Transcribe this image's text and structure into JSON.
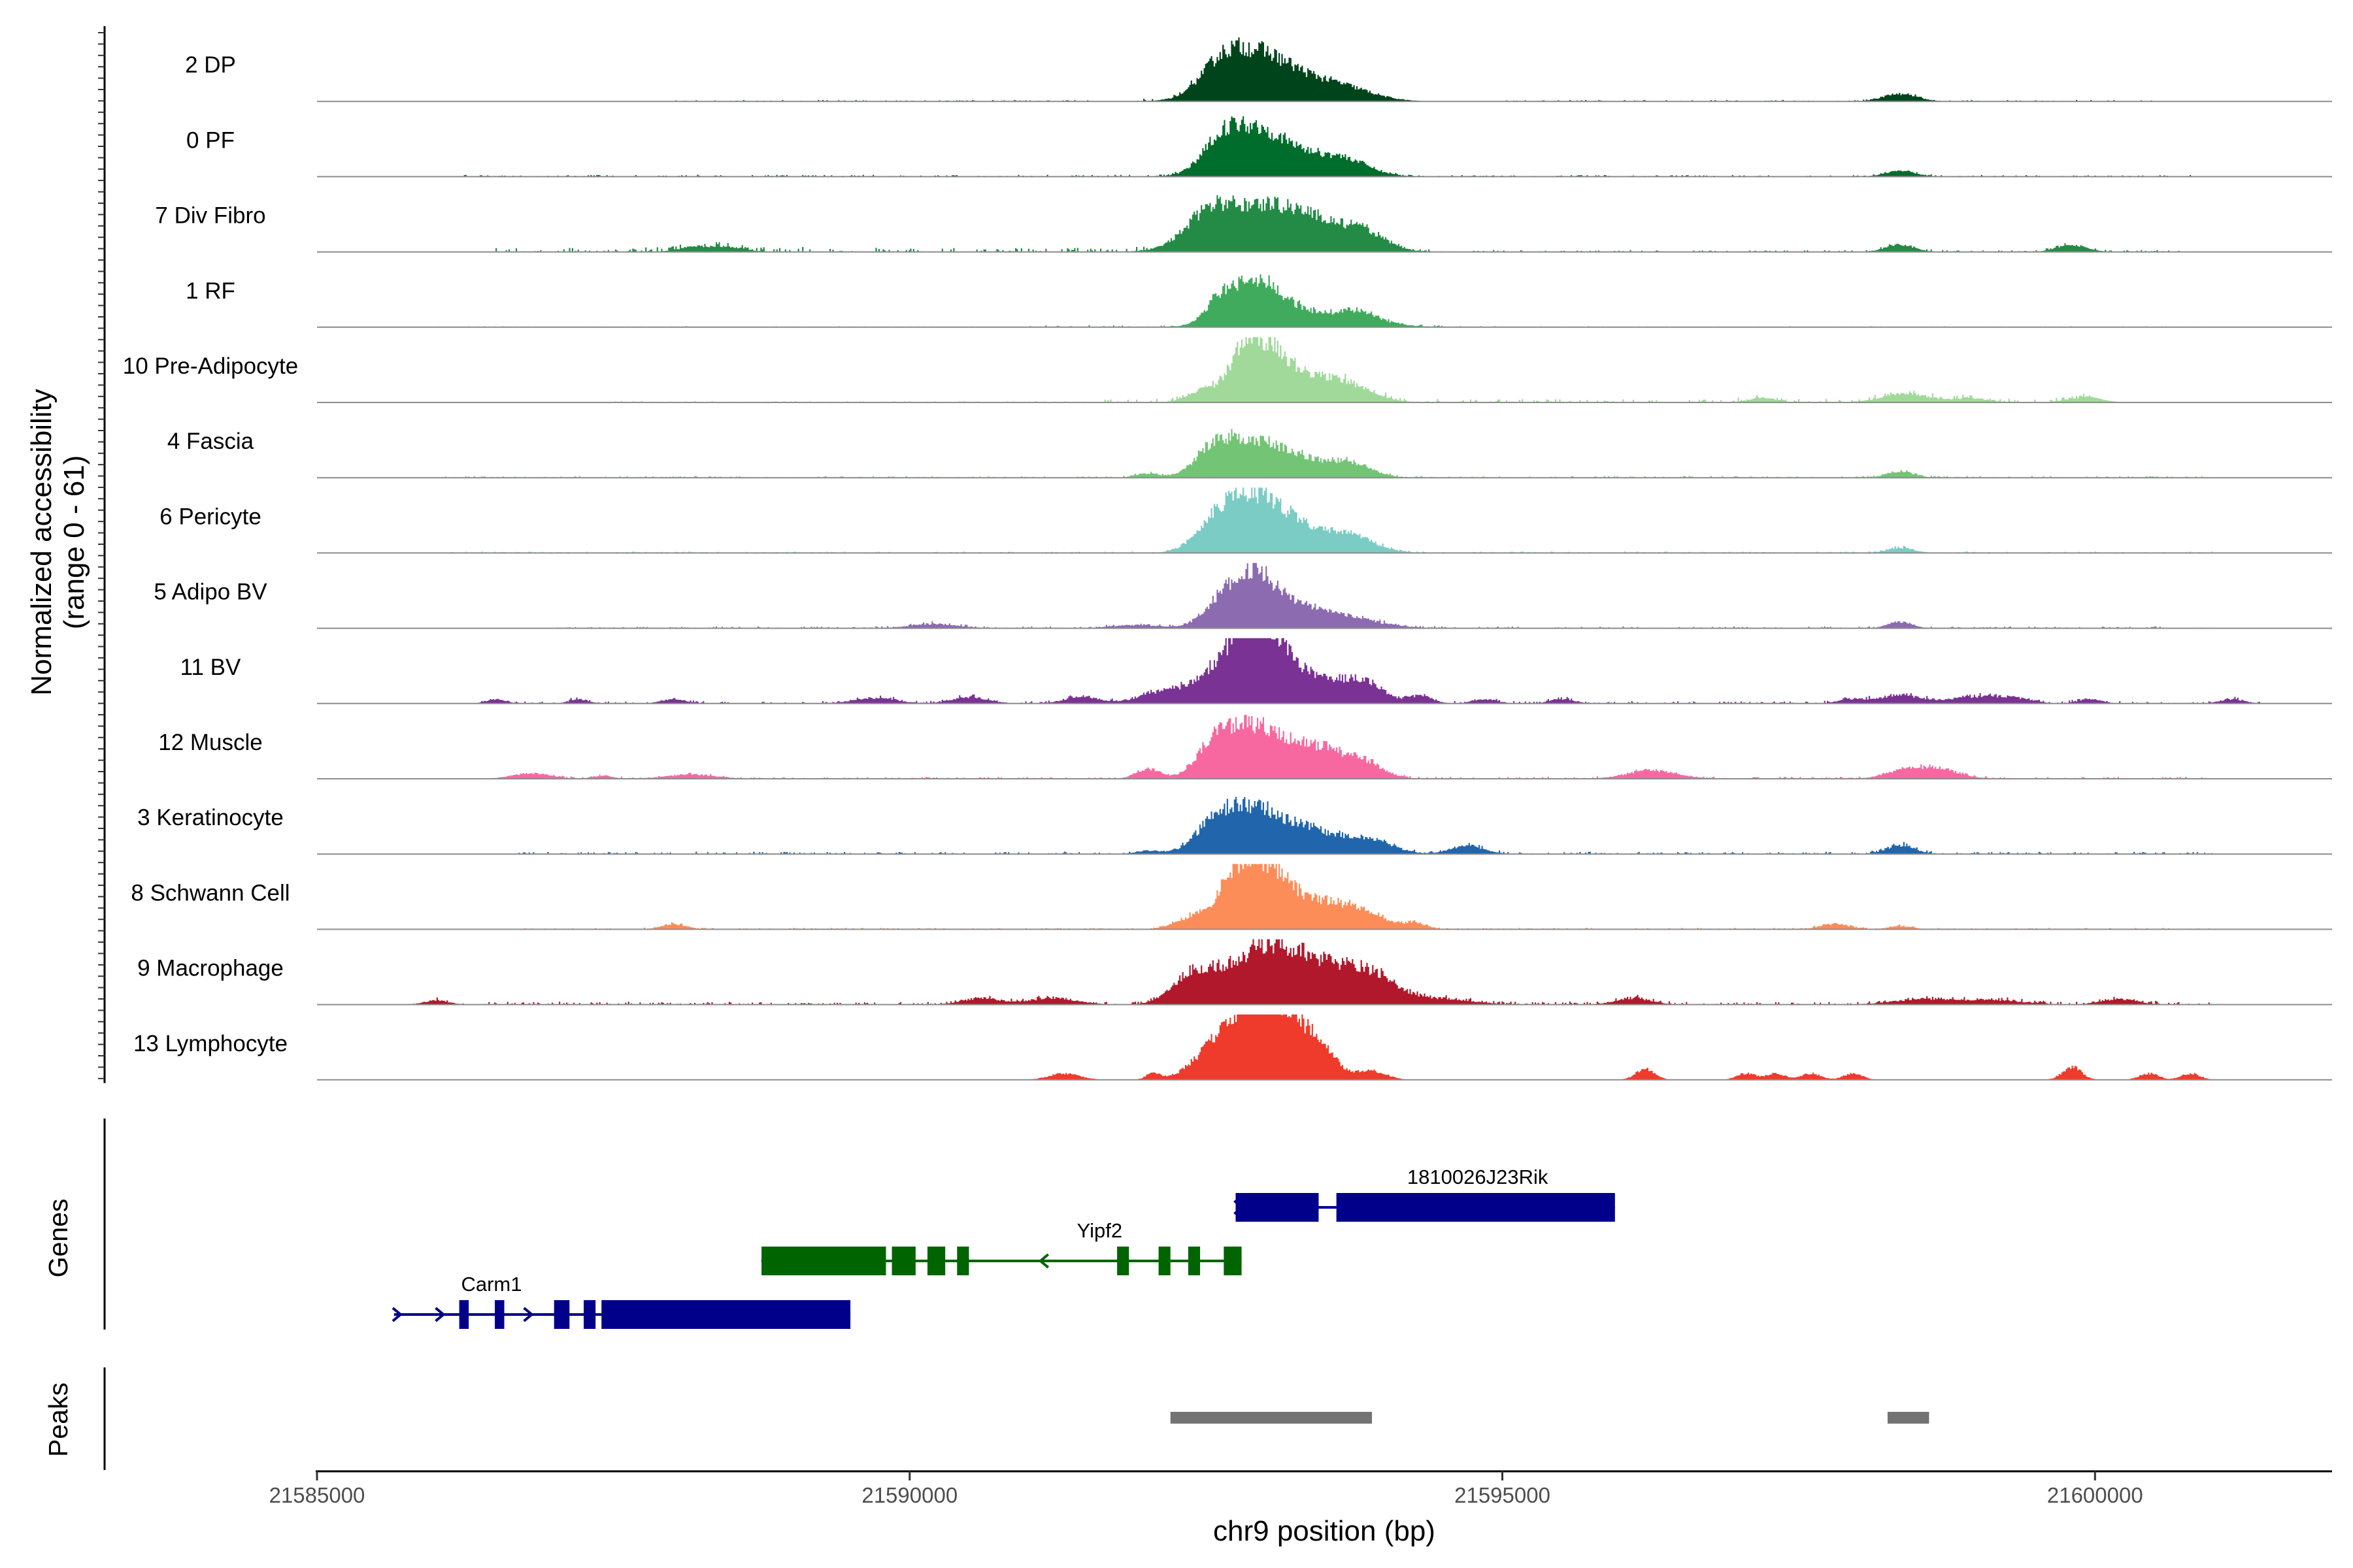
{
  "chart_data": {
    "type": "area",
    "title": "",
    "chromosome": "chr9",
    "xlabel": "chr9 position (bp)",
    "ylabel": "Normalized accessibility",
    "ylabel_range": "(range 0 - 61)",
    "xlim": [
      21585000,
      21602000
    ],
    "ylim": [
      0,
      61
    ],
    "x_ticks": [
      21585000,
      21590000,
      21595000,
      21600000
    ],
    "x_tick_labels": [
      "21585000",
      "21590000",
      "21595000",
      "21600000"
    ],
    "genes_label": "Genes",
    "peaks_label": "Peaks",
    "series": [
      {
        "name": "2 DP",
        "color": "#00441B",
        "peaks": [
          [
            21592850,
            42,
            280
          ],
          [
            21592600,
            14,
            150
          ],
          [
            21593300,
            16,
            300
          ],
          [
            21593700,
            8,
            250
          ],
          [
            21598350,
            7,
            140
          ]
        ],
        "noise": [
          [
            21591900,
            21592500,
            1.5
          ],
          [
            21588000,
            21591500,
            0.6
          ],
          [
            21595000,
            21600500,
            0.6
          ]
        ]
      },
      {
        "name": "0 PF",
        "color": "#006D2C",
        "peaks": [
          [
            21592850,
            40,
            250
          ],
          [
            21592600,
            16,
            140
          ],
          [
            21593300,
            18,
            300
          ],
          [
            21593700,
            10,
            200
          ],
          [
            21598350,
            6,
            120
          ]
        ],
        "noise": [
          [
            21586000,
            21592500,
            0.8
          ],
          [
            21594000,
            21601000,
            0.7
          ]
        ]
      },
      {
        "name": "7 Div Fibro",
        "color": "#238B45",
        "peaks": [
          [
            21592850,
            34,
            350
          ],
          [
            21592500,
            20,
            180
          ],
          [
            21593400,
            26,
            350
          ],
          [
            21593850,
            10,
            150
          ],
          [
            21598350,
            7,
            120
          ],
          [
            21599800,
            6,
            130
          ],
          [
            21588200,
            5,
            150
          ],
          [
            21588500,
            4,
            120
          ]
        ],
        "noise": [
          [
            21586500,
            21592000,
            2.0
          ],
          [
            21594000,
            21601000,
            0.8
          ]
        ]
      },
      {
        "name": "1 RF",
        "color": "#41AB5D",
        "peaks": [
          [
            21592900,
            38,
            220
          ],
          [
            21592600,
            14,
            120
          ],
          [
            21593400,
            12,
            400
          ],
          [
            21593800,
            8,
            150
          ]
        ],
        "noise": [
          [
            21591000,
            21594500,
            0.8
          ],
          [
            21586000,
            21601000,
            0.4
          ]
        ]
      },
      {
        "name": "10 Pre-Adipocyte",
        "color": "#A1D99B",
        "peaks": [
          [
            21592850,
            52,
            160
          ],
          [
            21593100,
            28,
            150
          ],
          [
            21593400,
            16,
            200
          ],
          [
            21593700,
            14,
            220
          ],
          [
            21592450,
            10,
            120
          ],
          [
            21598400,
            8,
            200
          ],
          [
            21599900,
            5,
            140
          ],
          [
            21597200,
            4,
            120
          ],
          [
            21598950,
            4,
            140
          ]
        ],
        "noise": [
          [
            21591500,
            21600000,
            1.6
          ],
          [
            21587500,
            21591500,
            0.6
          ]
        ]
      },
      {
        "name": "4 Fascia",
        "color": "#74C476",
        "peaks": [
          [
            21592850,
            27,
            250
          ],
          [
            21592550,
            20,
            150
          ],
          [
            21593300,
            16,
            320
          ],
          [
            21593750,
            9,
            150
          ],
          [
            21592000,
            4,
            100
          ],
          [
            21598350,
            6,
            110
          ]
        ],
        "noise": [
          [
            21586000,
            21601000,
            0.7
          ]
        ]
      },
      {
        "name": "6 Pericyte",
        "color": "#7BCCC4",
        "peaks": [
          [
            21592850,
            48,
            250
          ],
          [
            21592550,
            14,
            150
          ],
          [
            21593300,
            20,
            300
          ],
          [
            21593750,
            10,
            200
          ],
          [
            21598350,
            5,
            110
          ]
        ],
        "noise": [
          [
            21586000,
            21601000,
            0.6
          ]
        ]
      },
      {
        "name": "5 Adipo BV",
        "color": "#8C6BB1",
        "peaks": [
          [
            21592850,
            48,
            220
          ],
          [
            21593300,
            16,
            300
          ],
          [
            21593700,
            6,
            300
          ],
          [
            21592550,
            6,
            120
          ],
          [
            21598350,
            6,
            100
          ],
          [
            21590200,
            4,
            200
          ],
          [
            21591900,
            3,
            200
          ]
        ],
        "noise": [
          [
            21587000,
            21601000,
            0.8
          ]
        ]
      },
      {
        "name": "11 BV",
        "color": "#7A3294",
        "peaks": [
          [
            21592950,
            58,
            200
          ],
          [
            21592650,
            30,
            250
          ],
          [
            21593400,
            24,
            300
          ],
          [
            21593850,
            14,
            150
          ],
          [
            21592100,
            9,
            180
          ],
          [
            21591450,
            6,
            150
          ],
          [
            21590500,
            6,
            150
          ],
          [
            21589700,
            5,
            180
          ],
          [
            21594300,
            7,
            100
          ],
          [
            21598350,
            8,
            160
          ],
          [
            21598950,
            6,
            200
          ],
          [
            21599300,
            5,
            150
          ],
          [
            21586500,
            4,
            80
          ],
          [
            21587200,
            4,
            80
          ],
          [
            21588000,
            4,
            100
          ],
          [
            21594850,
            4,
            100
          ],
          [
            21595500,
            4,
            100
          ],
          [
            21597950,
            4,
            120
          ],
          [
            21599950,
            4,
            100
          ],
          [
            21601150,
            4,
            100
          ]
        ],
        "noise": [
          [
            21586300,
            21601400,
            1.0
          ]
        ]
      },
      {
        "name": "12 Muscle",
        "color": "#F768A1",
        "peaks": [
          [
            21592850,
            48,
            260
          ],
          [
            21592550,
            16,
            120
          ],
          [
            21593450,
            28,
            280
          ],
          [
            21593850,
            8,
            140
          ],
          [
            21592000,
            9,
            100
          ],
          [
            21596250,
            8,
            200
          ],
          [
            21598650,
            10,
            180
          ],
          [
            21598350,
            6,
            150
          ],
          [
            21586800,
            5,
            160
          ],
          [
            21588150,
            4,
            200
          ],
          [
            21587400,
            3,
            80
          ]
        ],
        "noise": [
          [
            21586800,
            21601000,
            0.8
          ]
        ]
      },
      {
        "name": "3 Keratinocyte",
        "color": "#2166AC",
        "peaks": [
          [
            21592850,
            42,
            260
          ],
          [
            21592550,
            14,
            150
          ],
          [
            21593400,
            20,
            250
          ],
          [
            21593900,
            12,
            180
          ],
          [
            21594700,
            8,
            140
          ],
          [
            21598350,
            8,
            120
          ],
          [
            21592000,
            3,
            100
          ]
        ],
        "noise": [
          [
            21586700,
            21601000,
            1.0
          ]
        ]
      },
      {
        "name": "8 Schwann Cell",
        "color": "#FC8D59",
        "peaks": [
          [
            21592950,
            58,
            200
          ],
          [
            21593450,
            26,
            280
          ],
          [
            21592700,
            24,
            120
          ],
          [
            21592400,
            12,
            150
          ],
          [
            21593850,
            10,
            150
          ],
          [
            21594250,
            6,
            100
          ],
          [
            21588000,
            5,
            100
          ],
          [
            21597800,
            5,
            120
          ],
          [
            21598350,
            3,
            100
          ]
        ],
        "noise": [
          [
            21586700,
            21601000,
            0.6
          ]
        ]
      },
      {
        "name": "9 Macrophage",
        "color": "#B2182B",
        "peaks": [
          [
            21592850,
            34,
            230
          ],
          [
            21592400,
            28,
            180
          ],
          [
            21593500,
            36,
            350
          ],
          [
            21593950,
            14,
            180
          ],
          [
            21593150,
            20,
            200
          ],
          [
            21590600,
            6,
            160
          ],
          [
            21591200,
            6,
            200
          ],
          [
            21594500,
            5,
            250
          ],
          [
            21596100,
            6,
            150
          ],
          [
            21598550,
            5,
            250
          ],
          [
            21599150,
            4,
            250
          ],
          [
            21600200,
            5,
            150
          ],
          [
            21586000,
            4,
            100
          ]
        ],
        "noise": [
          [
            21586000,
            21601000,
            1.2
          ]
        ]
      },
      {
        "name": "13 Lymphocyte",
        "color": "#EF3B2C",
        "peaks": [
          [
            21592950,
            61,
            200
          ],
          [
            21592600,
            30,
            200
          ],
          [
            21593400,
            34,
            170
          ],
          [
            21593150,
            20,
            150
          ],
          [
            21593900,
            8,
            120
          ],
          [
            21596200,
            10,
            80
          ],
          [
            21599800,
            12,
            80
          ],
          [
            21591300,
            6,
            130
          ],
          [
            21592050,
            6,
            60
          ],
          [
            21597050,
            6,
            80
          ],
          [
            21597300,
            6,
            80
          ],
          [
            21597600,
            6,
            80
          ],
          [
            21597950,
            6,
            80
          ],
          [
            21600450,
            6,
            80
          ],
          [
            21600800,
            6,
            80
          ]
        ],
        "noise": []
      }
    ],
    "genes": [
      {
        "name": "1810026J23Rik",
        "color": "#00008B",
        "start": 21592750,
        "end": 21595950,
        "strand": "+",
        "row": 0,
        "exons": [
          [
            21592750,
            21593450
          ],
          [
            21593600,
            21595950
          ]
        ]
      },
      {
        "name": "Yipf2",
        "color": "#006400",
        "start": 21588750,
        "end": 21592800,
        "strand": "-",
        "row": 1,
        "exons": [
          [
            21588750,
            21589800
          ],
          [
            21589850,
            21590050
          ],
          [
            21590150,
            21590300
          ],
          [
            21590400,
            21590500
          ],
          [
            21591750,
            21591850
          ],
          [
            21592100,
            21592200
          ],
          [
            21592350,
            21592450
          ],
          [
            21592650,
            21592800
          ]
        ]
      },
      {
        "name": "Carm1",
        "color": "#00008B",
        "start": 21585650,
        "end": 21589500,
        "strand": "+",
        "row": 2,
        "exons": [
          [
            21586200,
            21586280
          ],
          [
            21586500,
            21586580
          ],
          [
            21587000,
            21587130
          ],
          [
            21587250,
            21587350
          ],
          [
            21587400,
            21589500
          ]
        ]
      }
    ],
    "peaks": [
      {
        "start": 21592200,
        "end": 21593900
      },
      {
        "start": 21598250,
        "end": 21598600
      }
    ]
  }
}
